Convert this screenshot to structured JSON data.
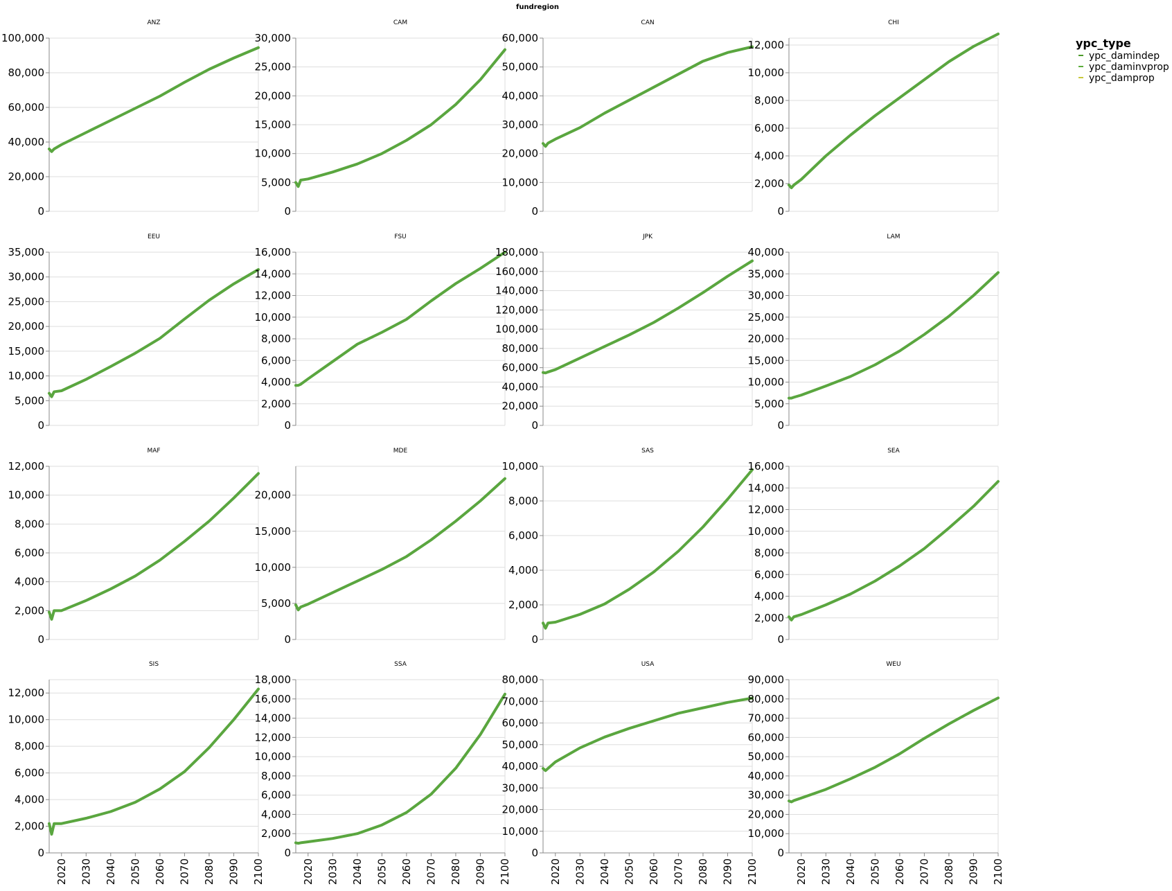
{
  "chart_data": {
    "type": "line",
    "facet_field": "fundregion",
    "x_ticks": [
      2020,
      2030,
      2040,
      2050,
      2060,
      2070,
      2080,
      2090,
      2100
    ],
    "xlim": [
      2015,
      2100
    ],
    "legend": {
      "title": "ypc_type",
      "position": "top-right",
      "entries": [
        {
          "label": "ypc_damindep",
          "color": "#4c9a2a"
        },
        {
          "label": "ypc_daminvprop",
          "color": "#5aad3a"
        },
        {
          "label": "ypc_damprop",
          "color": "#c9c93a"
        }
      ]
    },
    "line_color": "#5aa63f",
    "x": [
      2015,
      2016,
      2017,
      2020,
      2030,
      2040,
      2050,
      2060,
      2070,
      2080,
      2090,
      2100
    ],
    "panels": [
      {
        "title": "ANZ",
        "ylim": [
          0,
          100000
        ],
        "y_ticks": [
          0,
          20000,
          40000,
          60000,
          80000,
          100000
        ],
        "values": [
          36000,
          34500,
          36000,
          38500,
          45500,
          52500,
          59500,
          66500,
          74500,
          82000,
          88500,
          94500
        ]
      },
      {
        "title": "CAM",
        "ylim": [
          0,
          30000
        ],
        "y_ticks": [
          0,
          5000,
          10000,
          15000,
          20000,
          25000,
          30000
        ],
        "values": [
          5000,
          4300,
          5400,
          5600,
          6800,
          8200,
          10000,
          12300,
          15000,
          18500,
          22800,
          28000
        ]
      },
      {
        "title": "CAN",
        "ylim": [
          0,
          60000
        ],
        "y_ticks": [
          0,
          10000,
          20000,
          30000,
          40000,
          50000,
          60000
        ],
        "values": [
          23500,
          22500,
          23600,
          25000,
          29000,
          34000,
          38500,
          43000,
          47500,
          52000,
          55000,
          57000
        ]
      },
      {
        "title": "CHI",
        "ylim": [
          0,
          12500
        ],
        "y_ticks": [
          0,
          2000,
          4000,
          6000,
          8000,
          10000,
          12000
        ],
        "values": [
          1900,
          1700,
          1900,
          2300,
          4000,
          5500,
          6900,
          8200,
          9500,
          10800,
          11900,
          12800
        ]
      },
      {
        "title": "EEU",
        "ylim": [
          0,
          35000
        ],
        "y_ticks": [
          0,
          5000,
          10000,
          15000,
          20000,
          25000,
          30000,
          35000
        ],
        "values": [
          6500,
          5800,
          6800,
          7000,
          9300,
          11900,
          14600,
          17600,
          21500,
          25300,
          28600,
          31500
        ]
      },
      {
        "title": "FSU",
        "ylim": [
          0,
          16000
        ],
        "y_ticks": [
          0,
          2000,
          4000,
          6000,
          8000,
          10000,
          12000,
          14000,
          16000
        ],
        "values": [
          3700,
          3700,
          3800,
          4300,
          5900,
          7500,
          8600,
          9800,
          11500,
          13100,
          14500,
          16000
        ]
      },
      {
        "title": "JPK",
        "ylim": [
          0,
          180000
        ],
        "y_ticks": [
          0,
          20000,
          40000,
          60000,
          80000,
          100000,
          120000,
          140000,
          160000,
          180000
        ],
        "values": [
          55000,
          54500,
          55500,
          58000,
          70000,
          82000,
          94000,
          107000,
          122000,
          138000,
          155000,
          171000
        ]
      },
      {
        "title": "LAM",
        "ylim": [
          0,
          40000
        ],
        "y_ticks": [
          0,
          5000,
          10000,
          15000,
          20000,
          25000,
          30000,
          35000,
          40000
        ],
        "values": [
          6300,
          6300,
          6500,
          7000,
          9100,
          11300,
          14000,
          17200,
          21000,
          25200,
          30000,
          35300
        ]
      },
      {
        "title": "MAF",
        "ylim": [
          0,
          12000
        ],
        "y_ticks": [
          0,
          2000,
          4000,
          6000,
          8000,
          10000,
          12000
        ],
        "values": [
          1900,
          1400,
          2000,
          2000,
          2700,
          3500,
          4400,
          5500,
          6800,
          8200,
          9800,
          11500
        ]
      },
      {
        "title": "MDE",
        "ylim": [
          0,
          24000
        ],
        "y_ticks": [
          0,
          5000,
          10000,
          15000,
          20000
        ],
        "values": [
          4800,
          4100,
          4500,
          4900,
          6500,
          8100,
          9700,
          11500,
          13800,
          16400,
          19200,
          22300
        ]
      },
      {
        "title": "SAS",
        "ylim": [
          0,
          10000
        ],
        "y_ticks": [
          0,
          2000,
          4000,
          6000,
          8000,
          10000
        ],
        "values": [
          950,
          650,
          950,
          1000,
          1450,
          2050,
          2900,
          3900,
          5100,
          6500,
          8100,
          9800
        ]
      },
      {
        "title": "SEA",
        "ylim": [
          0,
          16000
        ],
        "y_ticks": [
          0,
          2000,
          4000,
          6000,
          8000,
          10000,
          12000,
          14000,
          16000
        ],
        "values": [
          2100,
          1800,
          2100,
          2300,
          3200,
          4200,
          5400,
          6800,
          8400,
          10300,
          12300,
          14600
        ]
      },
      {
        "title": "SIS",
        "ylim": [
          0,
          13000
        ],
        "y_ticks": [
          0,
          2000,
          4000,
          6000,
          8000,
          10000,
          12000
        ],
        "values": [
          2200,
          1400,
          2200,
          2200,
          2600,
          3100,
          3800,
          4800,
          6100,
          7900,
          10000,
          12300
        ]
      },
      {
        "title": "SSA",
        "ylim": [
          0,
          18000
        ],
        "y_ticks": [
          0,
          2000,
          4000,
          6000,
          8000,
          10000,
          12000,
          14000,
          16000,
          18000
        ],
        "values": [
          1050,
          1000,
          1050,
          1150,
          1500,
          2000,
          2900,
          4200,
          6100,
          8800,
          12300,
          16500
        ]
      },
      {
        "title": "USA",
        "ylim": [
          0,
          80000
        ],
        "y_ticks": [
          0,
          10000,
          20000,
          30000,
          40000,
          50000,
          60000,
          70000,
          80000
        ],
        "values": [
          39000,
          38000,
          39000,
          42000,
          48500,
          53500,
          57500,
          61000,
          64500,
          67000,
          69500,
          71500
        ]
      },
      {
        "title": "WEU",
        "ylim": [
          0,
          90000
        ],
        "y_ticks": [
          0,
          10000,
          20000,
          30000,
          40000,
          50000,
          60000,
          70000,
          80000,
          90000
        ],
        "values": [
          27000,
          26500,
          27200,
          28500,
          33000,
          38500,
          44500,
          51500,
          59500,
          67000,
          74000,
          80500
        ]
      }
    ]
  }
}
